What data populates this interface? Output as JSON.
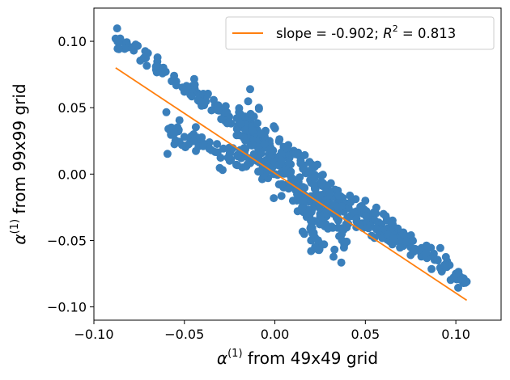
{
  "chart_data": {
    "type": "scatter",
    "title": "",
    "xlabel": {
      "symbol": "α",
      "superscript": "(1)",
      "rest": " from 49x49 grid"
    },
    "ylabel": {
      "symbol": "α",
      "superscript": "(1)",
      "rest": " from 99x99 grid"
    },
    "xlim": [
      -0.1,
      0.125
    ],
    "ylim": [
      -0.11,
      0.125
    ],
    "xticks": [
      -0.1,
      -0.05,
      0.0,
      0.05,
      0.1
    ],
    "xtick_labels": [
      "−0.10",
      "−0.05",
      "0.00",
      "0.05",
      "0.10"
    ],
    "yticks": [
      -0.1,
      -0.05,
      0.0,
      0.05,
      0.1
    ],
    "ytick_labels": [
      "−0.10",
      "−0.05",
      "0.00",
      "0.05",
      "0.10"
    ],
    "grid": false,
    "scatter_color": "#3a7fbb",
    "fit_color": "#ff7f0e",
    "legend": {
      "position": "top-right",
      "prefix": "slope = -0.902; ",
      "r_symbol": "R",
      "r_sup": "2",
      "suffix": " = 0.813"
    },
    "fit_line": {
      "x": [
        -0.088,
        0.106
      ],
      "y": [
        0.08,
        -0.095
      ]
    },
    "scatter_segments": [
      {
        "name": "upper band",
        "x_range": [
          -0.088,
          0.106
        ],
        "y_at_start": 0.102,
        "y_at_end": -0.081,
        "count": 230,
        "spread": 0.004
      },
      {
        "name": "lower band",
        "x_range": [
          -0.06,
          0.0
        ],
        "y_at_start": 0.033,
        "y_at_end": 0.0,
        "count": 70,
        "spread": 0.005
      },
      {
        "name": "central cluster",
        "x_range": [
          -0.02,
          0.04
        ],
        "y_at_start": 0.035,
        "y_at_end": -0.04,
        "count": 260,
        "spread": 0.012
      },
      {
        "name": "lower spike",
        "x_range": [
          0.015,
          0.025
        ],
        "y_at_start": -0.02,
        "y_at_end": -0.058,
        "count": 35,
        "spread": 0.003
      },
      {
        "name": "right secondary band",
        "x_range": [
          0.03,
          0.07
        ],
        "y_at_start": -0.025,
        "y_at_end": -0.05,
        "count": 45,
        "spread": 0.004
      }
    ],
    "scatter_points": [
      [
        -0.088,
        0.102
      ],
      [
        -0.085,
        0.1
      ],
      [
        -0.078,
        0.093
      ],
      [
        -0.072,
        0.088
      ],
      [
        -0.065,
        0.077
      ],
      [
        -0.057,
        0.07
      ],
      [
        -0.05,
        0.062
      ],
      [
        -0.042,
        0.055
      ],
      [
        -0.035,
        0.048
      ],
      [
        -0.028,
        0.043
      ],
      [
        -0.02,
        0.035
      ],
      [
        -0.015,
        0.028
      ],
      [
        -0.058,
        0.033
      ],
      [
        -0.05,
        0.028
      ],
      [
        -0.042,
        0.022
      ],
      [
        -0.035,
        0.018
      ],
      [
        -0.025,
        0.01
      ],
      [
        -0.018,
        0.005
      ],
      [
        -0.01,
        0.01
      ],
      [
        0.0,
        0.0
      ],
      [
        0.005,
        -0.01
      ],
      [
        0.01,
        -0.02
      ],
      [
        0.015,
        -0.025
      ],
      [
        0.02,
        -0.035
      ],
      [
        0.02,
        -0.05
      ],
      [
        0.02,
        -0.058
      ],
      [
        0.025,
        -0.03
      ],
      [
        0.035,
        -0.035
      ],
      [
        0.045,
        -0.04
      ],
      [
        0.055,
        -0.048
      ],
      [
        0.05,
        -0.02
      ],
      [
        0.06,
        -0.03
      ],
      [
        0.065,
        -0.035
      ],
      [
        0.07,
        -0.05
      ],
      [
        0.075,
        -0.055
      ],
      [
        0.08,
        -0.058
      ],
      [
        0.09,
        -0.065
      ],
      [
        0.095,
        -0.07
      ],
      [
        0.1,
        -0.075
      ],
      [
        0.106,
        -0.081
      ]
    ]
  }
}
